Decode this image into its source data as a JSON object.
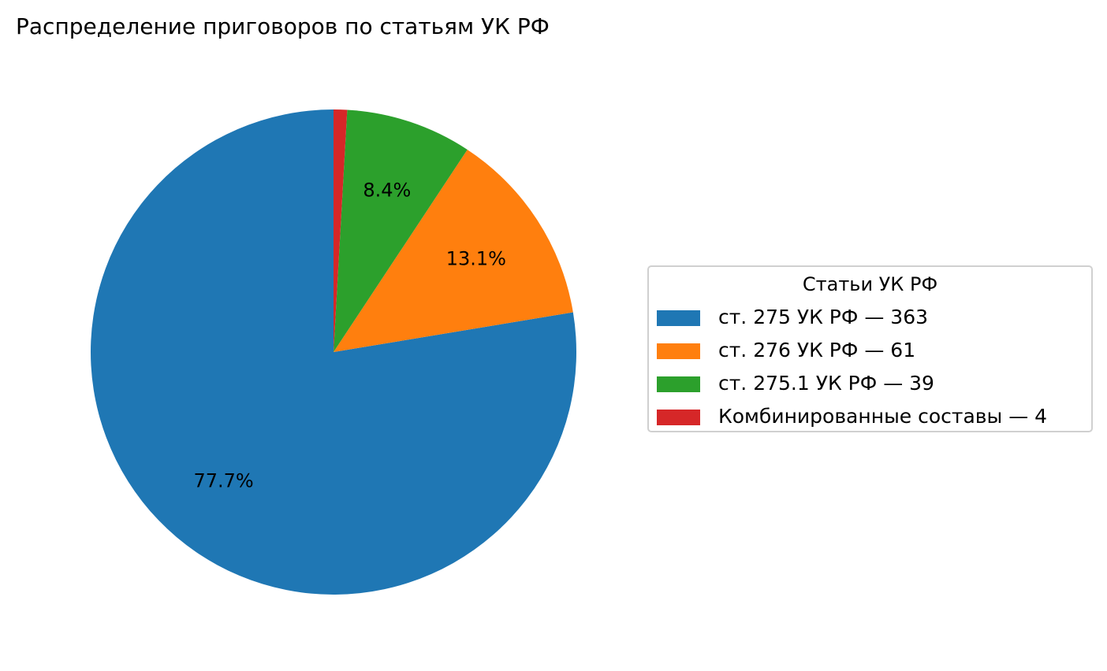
{
  "chart_data": {
    "type": "pie",
    "title": "Распределение приговоров по статьям УК РФ",
    "categories": [
      "ст. 275 УК РФ — 363",
      "ст. 276 УК РФ — 61",
      "ст. 275.1 УК РФ — 39",
      "Комбинированные составы — 4"
    ],
    "values": [
      77.7,
      13.1,
      8.4,
      0.9
    ],
    "value_labels": [
      "77.7%",
      "13.1%",
      "8.4%",
      null
    ],
    "colors": [
      "#1f77b4",
      "#ff7f0e",
      "#2ca02c",
      "#d62728"
    ],
    "start_angle": 90,
    "counterclockwise": true,
    "legend": {
      "title": "Статьи УК РФ",
      "position": "right"
    }
  }
}
